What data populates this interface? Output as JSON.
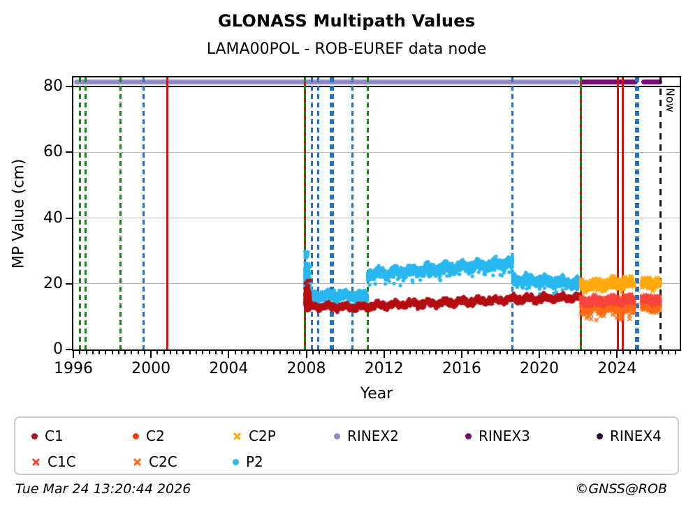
{
  "title": "GLONASS Multipath Values",
  "subtitle": "LAMA00POL - ROB-EUREF data node",
  "footer": {
    "timestamp": "Tue Mar 24 13:20:44 2026",
    "credit": "©GNSS@ROB"
  },
  "now": {
    "label": "Now",
    "x": 2026.23
  },
  "axes": {
    "xlabel": "Year",
    "ylabel": "MP Value (cm)",
    "x_range": [
      1996,
      2027.23
    ],
    "y_range": [
      0,
      82.76
    ],
    "x_ticks": [
      1996,
      2000,
      2004,
      2008,
      2012,
      2016,
      2020,
      2024
    ],
    "x_minor_per_major": 12,
    "y_ticks": [
      0,
      20,
      40,
      60,
      80
    ],
    "gridlines": [
      20,
      40,
      60
    ],
    "grid_color": "#b7b7b7",
    "reference_line": {
      "y": 80,
      "color": "#000000"
    }
  },
  "legend": {
    "entries": [
      {
        "label": "C1",
        "marker": "dot",
        "color": "#b11015"
      },
      {
        "label": "C2",
        "marker": "dot",
        "color": "#f23d0f"
      },
      {
        "label": "C2P",
        "marker": "x",
        "color": "#ffa90e"
      },
      {
        "label": "RINEX2",
        "marker": "dot",
        "color": "#8f8ac5"
      },
      {
        "label": "RINEX3",
        "marker": "dot",
        "color": "#730a73"
      },
      {
        "label": "RINEX4",
        "marker": "dot",
        "color": "#2b0a33"
      },
      {
        "label": "C1C",
        "marker": "x",
        "color": "#f8453c"
      },
      {
        "label": "C2C",
        "marker": "x",
        "color": "#fb6a14"
      },
      {
        "label": "P2",
        "marker": "dot",
        "color": "#29b7ef"
      }
    ]
  },
  "chart_data": {
    "type": "scatter",
    "title": "GLONASS Multipath Values",
    "subtitle": "LAMA00POL - ROB-EUREF data node",
    "xlabel": "Year",
    "ylabel": "MP Value (cm)",
    "xlim": [
      1996,
      2027.23
    ],
    "ylim": [
      0,
      82.76
    ],
    "legend_position": "below",
    "series": [
      {
        "name": "P2",
        "color": "#29b7ef",
        "marker": "dot",
        "segments": [
          {
            "x0": 2007.93,
            "x1": 2008.2,
            "y0": 23.0,
            "y1": 17.5,
            "spread": 4.5,
            "n": 320,
            "clip": [
              13.5,
              33.5
            ],
            "high_tail": 0.1
          },
          {
            "x0": 2008.15,
            "x1": 2011.15,
            "y0": 16.5,
            "y1": 16.3,
            "spread": 1.2,
            "n": 1000,
            "low_tail": 0.06
          },
          {
            "x0": 2011.15,
            "x1": 2018.62,
            "y0": 22.9,
            "y1": 26.3,
            "spread": 1.35,
            "n": 2300,
            "low_tail": 0.04
          },
          {
            "x0": 2018.63,
            "x1": 2022.13,
            "y0": 21.3,
            "y1": 20.1,
            "spread": 1.35,
            "n": 1100,
            "low_tail": 0.03
          }
        ]
      },
      {
        "name": "C1",
        "color": "#b50f13",
        "marker": "dot",
        "segments": [
          {
            "x0": 2007.93,
            "x1": 2008.2,
            "y0": 15.5,
            "y1": 13.4,
            "spread": 2.0,
            "n": 220,
            "clip": [
              11.8,
              21.0
            ],
            "high_tail": 0.15
          },
          {
            "x0": 2008.15,
            "x1": 2011.15,
            "y0": 13.1,
            "y1": 12.9,
            "spread": 0.75,
            "n": 1000
          },
          {
            "x0": 2011.15,
            "x1": 2018.62,
            "y0": 13.3,
            "y1": 15.2,
            "spread": 0.8,
            "n": 2300
          },
          {
            "x0": 2018.63,
            "x1": 2022.13,
            "y0": 15.3,
            "y1": 15.9,
            "spread": 0.85,
            "n": 1100
          }
        ]
      },
      {
        "name": "C2",
        "color": "#f23d0f",
        "marker": "dot",
        "segments": []
      },
      {
        "name": "C2C",
        "color": "#fb6a14",
        "marker": "x",
        "segments": [
          {
            "x0": 2022.14,
            "x1": 2024.88,
            "y0": 13.0,
            "y1": 13.2,
            "spread": 1.6,
            "n": 880,
            "low_tail": 0.05
          },
          {
            "x0": 2025.28,
            "x1": 2026.2,
            "y0": 13.2,
            "y1": 13.4,
            "spread": 1.5,
            "n": 300
          }
        ]
      },
      {
        "name": "C1C",
        "color": "#f8453c",
        "marker": "x",
        "segments": [
          {
            "x0": 2022.14,
            "x1": 2024.88,
            "y0": 14.7,
            "y1": 15.0,
            "spread": 1.0,
            "n": 800
          },
          {
            "x0": 2025.28,
            "x1": 2026.2,
            "y0": 15.0,
            "y1": 15.3,
            "spread": 1.0,
            "n": 280
          }
        ]
      },
      {
        "name": "C2P",
        "color": "#ffa90e",
        "marker": "x",
        "segments": [
          {
            "x0": 2022.14,
            "x1": 2024.88,
            "y0": 19.4,
            "y1": 20.4,
            "spread": 1.4,
            "n": 880
          },
          {
            "x0": 2025.28,
            "x1": 2026.2,
            "y0": 19.9,
            "y1": 20.4,
            "spread": 1.3,
            "n": 300
          }
        ]
      }
    ],
    "rinex_bands": [
      {
        "name": "RINEX2",
        "color": "#918cc7",
        "x0": 1996.02,
        "x1": 2022.1,
        "y": 81.3
      },
      {
        "name": "RINEX3",
        "color": "#7a0c78",
        "x0": 2022.1,
        "x1": 2025.07,
        "y": 81.3
      },
      {
        "name": "RINEX3",
        "color": "#7a0c78",
        "x0": 2025.25,
        "x1": 2026.33,
        "y": 81.3
      }
    ],
    "event_lines": [
      {
        "x": 1996.33,
        "color": "green",
        "style": "dashed"
      },
      {
        "x": 1996.62,
        "color": "green",
        "style": "dashed"
      },
      {
        "x": 1998.42,
        "color": "green",
        "style": "dashed"
      },
      {
        "x": 1999.62,
        "color": "blue",
        "style": "dashed"
      },
      {
        "x": 2000.85,
        "color": "red",
        "style": "solid"
      },
      {
        "x": 2007.93,
        "color": "red",
        "style": "solid"
      },
      {
        "x": 2007.93,
        "color": "green",
        "style": "dashed"
      },
      {
        "x": 2008.27,
        "color": "blue",
        "style": "dashed"
      },
      {
        "x": 2008.6,
        "color": "blue",
        "style": "dashed"
      },
      {
        "x": 2009.33,
        "color": "blue",
        "style": "dashed",
        "thick": true
      },
      {
        "x": 2010.36,
        "color": "blue",
        "style": "dashed"
      },
      {
        "x": 2011.16,
        "color": "green",
        "style": "dashed"
      },
      {
        "x": 2018.63,
        "color": "blue",
        "style": "dashed"
      },
      {
        "x": 2022.13,
        "color": "red",
        "style": "solid"
      },
      {
        "x": 2022.13,
        "color": "green",
        "style": "dashed"
      },
      {
        "x": 2024.05,
        "color": "red",
        "style": "solid"
      },
      {
        "x": 2024.3,
        "color": "red",
        "style": "solid"
      },
      {
        "x": 2025.02,
        "color": "blue",
        "style": "dashed",
        "thick": true
      },
      {
        "x": 2026.23,
        "color": "black",
        "style": "dashed",
        "label": "Now"
      }
    ]
  }
}
